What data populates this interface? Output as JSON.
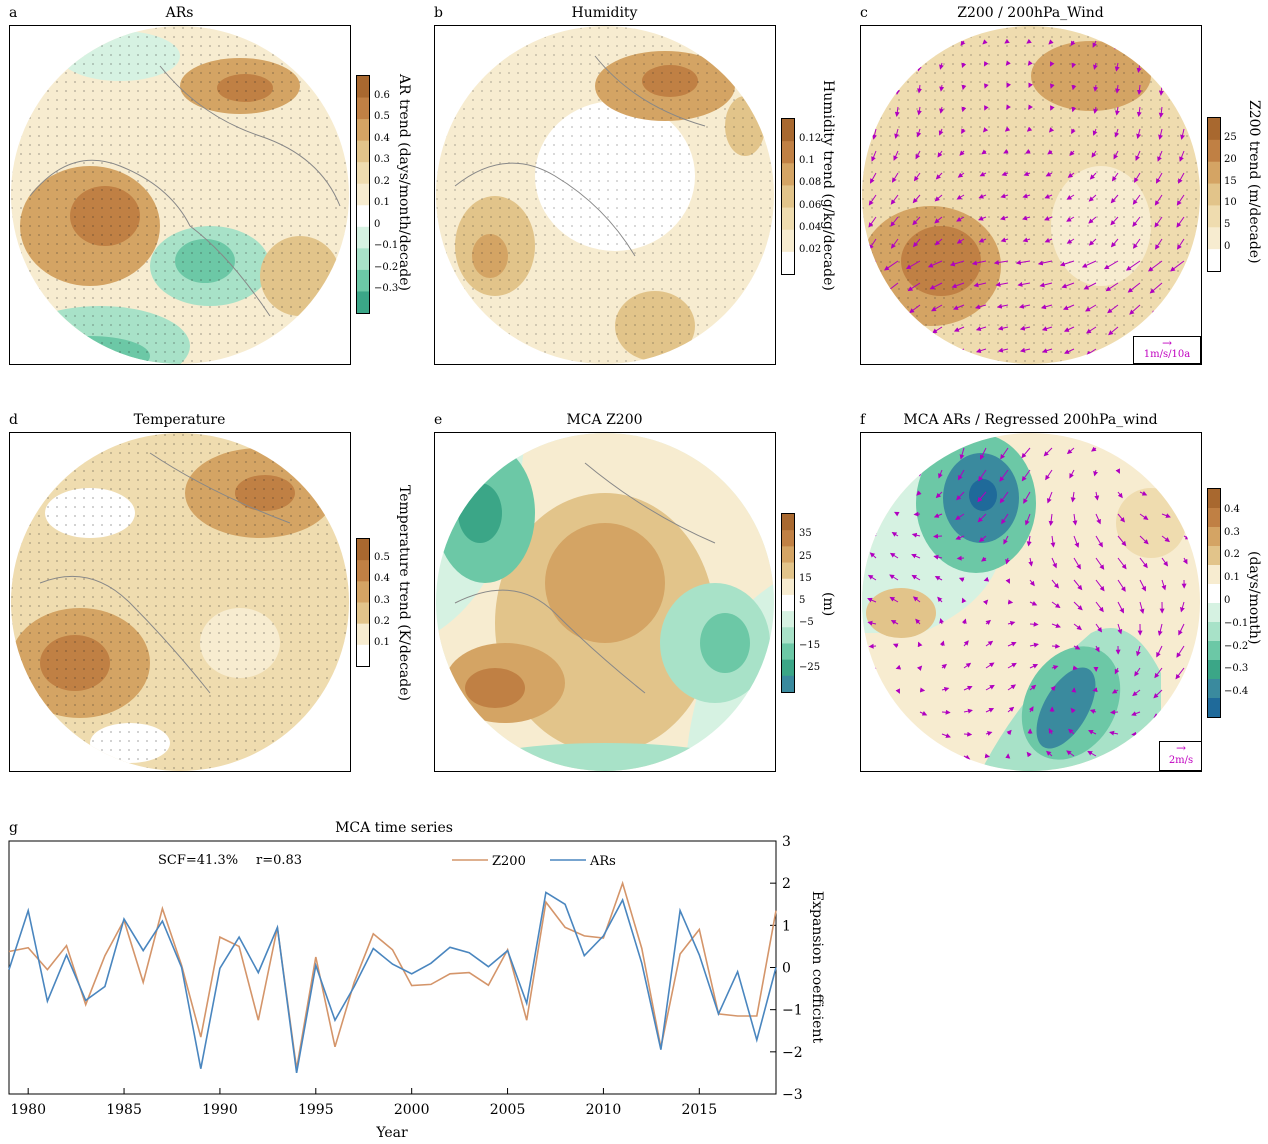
{
  "panels": {
    "a": {
      "letter": "a",
      "title": "ARs",
      "cbar_label": "AR trend (days/month/decade)",
      "ticks": [
        "0.6",
        "0.5",
        "0.4",
        "0.3",
        "0.2",
        "0.1",
        "0",
        "−0.1",
        "−0.2",
        "−0.3"
      ],
      "colors": [
        "#a8682f",
        "#c08044",
        "#d4a464",
        "#e2c48a",
        "#efdcaf",
        "#f7ecd0",
        "#ffffff",
        "#d6f2e2",
        "#a8e2c8",
        "#6cc8a6",
        "#3ba687"
      ]
    },
    "b": {
      "letter": "b",
      "title": "Humidity",
      "cbar_label": "Humidity trend (g/kg/decade)",
      "ticks": [
        "0.12",
        "0.1",
        "0.08",
        "0.06",
        "0.04",
        "0.02"
      ],
      "colors": [
        "#a8682f",
        "#c08044",
        "#d4a464",
        "#e2c48a",
        "#efdcaf",
        "#f7ecd0",
        "#ffffff"
      ]
    },
    "c": {
      "letter": "c",
      "title": "Z200 / 200hPa_Wind",
      "cbar_label": "Z200 trend (m/decade)",
      "ticks": [
        "25",
        "20",
        "15",
        "10",
        "5",
        "0"
      ],
      "colors": [
        "#a8682f",
        "#c08044",
        "#d4a464",
        "#e2c48a",
        "#efdcaf",
        "#f7ecd0",
        "#ffffff"
      ],
      "vector_key": "1m/s/10a"
    },
    "d": {
      "letter": "d",
      "title": "Temperature",
      "cbar_label": "Temperature trend (K/decade)",
      "ticks": [
        "0.5",
        "0.4",
        "0.3",
        "0.2",
        "0.1"
      ],
      "colors": [
        "#a8682f",
        "#c08044",
        "#d4a464",
        "#e2c48a",
        "#f7ecd0",
        "#ffffff"
      ]
    },
    "e": {
      "letter": "e",
      "title": "MCA Z200",
      "cbar_label": "(m)",
      "ticks": [
        "35",
        "25",
        "15",
        "5",
        "−5",
        "−15",
        "−25"
      ],
      "colors": [
        "#a8682f",
        "#c08044",
        "#d4a464",
        "#e2c48a",
        "#f7ecd0",
        "#ffffff",
        "#d6f2e2",
        "#a8e2c8",
        "#6cc8a6",
        "#3ba687",
        "#3a8a9e"
      ]
    },
    "f": {
      "letter": "f",
      "title": "MCA ARs / Regressed 200hPa_wind",
      "cbar_label": "(days/month)",
      "ticks": [
        "0.4",
        "0.3",
        "0.2",
        "0.1",
        "0",
        "−0.1",
        "−0.2",
        "−0.3",
        "−0.4"
      ],
      "colors": [
        "#a8682f",
        "#c08044",
        "#d4a464",
        "#e2c48a",
        "#f7ecd0",
        "#ffffff",
        "#d6f2e2",
        "#a8e2c8",
        "#6cc8a6",
        "#3ba687",
        "#3a8a9e",
        "#1f6a9a"
      ],
      "vector_key": "2m/s"
    }
  },
  "chart_data": {
    "type": "line",
    "letter": "g",
    "title": "MCA time series",
    "xlabel": "Year",
    "ylabel": "Expansion coefficient",
    "annotation_scf": "SCF=41.3%",
    "annotation_r": "r=0.83",
    "xlim": [
      1979,
      2019
    ],
    "ylim": [
      -3,
      3
    ],
    "xticks": [
      1980,
      1985,
      1990,
      1995,
      2000,
      2005,
      2010,
      2015
    ],
    "yticks": [
      3,
      2,
      1,
      0,
      -1,
      -2,
      -3
    ],
    "x": [
      1979,
      1980,
      1981,
      1982,
      1983,
      1984,
      1985,
      1986,
      1987,
      1988,
      1989,
      1990,
      1991,
      1992,
      1993,
      1994,
      1995,
      1996,
      1997,
      1998,
      1999,
      2000,
      2001,
      2002,
      2003,
      2004,
      2005,
      2006,
      2007,
      2008,
      2009,
      2010,
      2011,
      2012,
      2013,
      2014,
      2015,
      2016,
      2017,
      2018,
      2019
    ],
    "series": [
      {
        "name": "Z200",
        "color": "#d4956a",
        "values": [
          0.38,
          0.47,
          -0.05,
          0.52,
          -0.88,
          0.28,
          1.12,
          -0.35,
          1.4,
          0.05,
          -1.65,
          0.72,
          0.5,
          -1.25,
          0.95,
          -2.4,
          0.25,
          -1.88,
          -0.35,
          0.8,
          0.42,
          -0.43,
          -0.4,
          -0.15,
          -0.12,
          -0.42,
          0.42,
          -1.25,
          1.55,
          0.95,
          0.75,
          0.7,
          2.0,
          0.45,
          -1.9,
          0.32,
          0.9,
          -1.1,
          -1.15,
          -1.15,
          1.35
        ]
      },
      {
        "name": "ARs",
        "color": "#4a86bf",
        "values": [
          -0.05,
          1.35,
          -0.8,
          0.3,
          -0.78,
          -0.45,
          1.15,
          0.4,
          1.1,
          0.0,
          -2.4,
          -0.02,
          0.72,
          -0.12,
          0.95,
          -2.5,
          0.05,
          -1.25,
          -0.45,
          0.45,
          0.08,
          -0.15,
          0.1,
          0.48,
          0.35,
          0.02,
          0.4,
          -0.85,
          1.78,
          1.5,
          0.28,
          0.75,
          1.6,
          0.1,
          -1.95,
          1.35,
          0.3,
          -1.1,
          -0.1,
          -1.72,
          0.0
        ]
      }
    ]
  }
}
